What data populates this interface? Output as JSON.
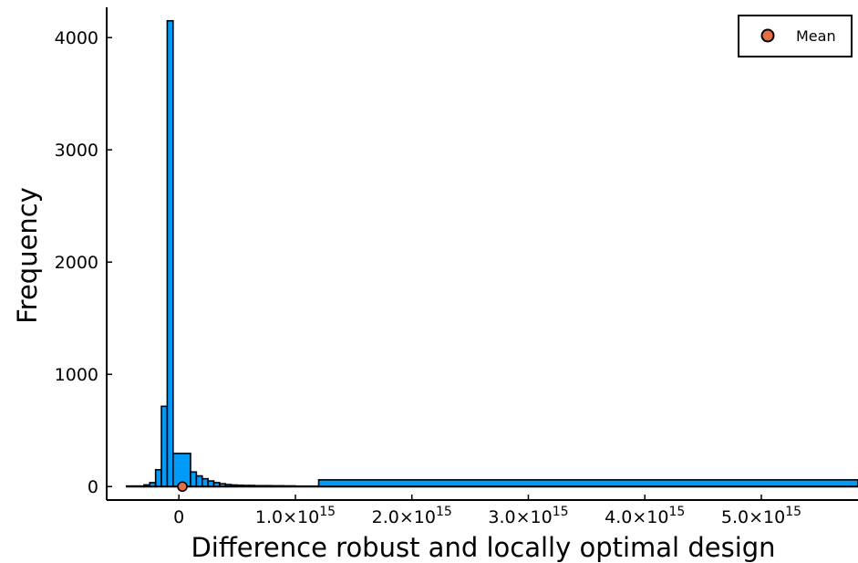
{
  "chart_data": {
    "type": "bar",
    "title": "",
    "xlabel": "Difference robust and locally optimal design",
    "ylabel": "Frequency",
    "xlim": [
      -620000000000000.0,
      5830000000000000.0
    ],
    "ylim": [
      -120,
      4270
    ],
    "grid": false,
    "legend_position": "top-right",
    "x_ticks": [
      {
        "value": 0,
        "mantissa": "0",
        "exponent": ""
      },
      {
        "value": 1000000000000000.0,
        "mantissa": "1.0×10",
        "exponent": "15"
      },
      {
        "value": 2000000000000000.0,
        "mantissa": "2.0×10",
        "exponent": "15"
      },
      {
        "value": 3000000000000000.0,
        "mantissa": "3.0×10",
        "exponent": "15"
      },
      {
        "value": 4000000000000000.0,
        "mantissa": "4.0×10",
        "exponent": "15"
      },
      {
        "value": 5000000000000000.0,
        "mantissa": "5.0×10",
        "exponent": "15"
      }
    ],
    "y_ticks": [
      0,
      1000,
      2000,
      3000,
      4000
    ],
    "series": [
      {
        "name": "",
        "kind": "histogram",
        "color": "#009af9",
        "bins": [
          {
            "x0": -450000000000000.0,
            "x1": -300000000000000.0,
            "count": 5
          },
          {
            "x0": -300000000000000.0,
            "x1": -250000000000000.0,
            "count": 15
          },
          {
            "x0": -250000000000000.0,
            "x1": -200000000000000.0,
            "count": 35
          },
          {
            "x0": -200000000000000.0,
            "x1": -150000000000000.0,
            "count": 150
          },
          {
            "x0": -150000000000000.0,
            "x1": -100000000000000.0,
            "count": 715
          },
          {
            "x0": -100000000000000.0,
            "x1": -50000000000000.0,
            "count": 4150
          },
          {
            "x0": -50000000000000.0,
            "x1": 100000000000000.0,
            "count": 295
          },
          {
            "x0": 100000000000000.0,
            "x1": 150000000000000.0,
            "count": 130
          },
          {
            "x0": 150000000000000.0,
            "x1": 200000000000000.0,
            "count": 95
          },
          {
            "x0": 200000000000000.0,
            "x1": 250000000000000.0,
            "count": 70
          },
          {
            "x0": 250000000000000.0,
            "x1": 300000000000000.0,
            "count": 50
          },
          {
            "x0": 300000000000000.0,
            "x1": 350000000000000.0,
            "count": 35
          },
          {
            "x0": 350000000000000.0,
            "x1": 400000000000000.0,
            "count": 25
          },
          {
            "x0": 400000000000000.0,
            "x1": 450000000000000.0,
            "count": 18
          },
          {
            "x0": 450000000000000.0,
            "x1": 500000000000000.0,
            "count": 14
          },
          {
            "x0": 500000000000000.0,
            "x1": 550000000000000.0,
            "count": 12
          },
          {
            "x0": 550000000000000.0,
            "x1": 600000000000000.0,
            "count": 10
          },
          {
            "x0": 600000000000000.0,
            "x1": 650000000000000.0,
            "count": 10
          },
          {
            "x0": 650000000000000.0,
            "x1": 700000000000000.0,
            "count": 8
          },
          {
            "x0": 700000000000000.0,
            "x1": 750000000000000.0,
            "count": 8
          },
          {
            "x0": 750000000000000.0,
            "x1": 800000000000000.0,
            "count": 8
          },
          {
            "x0": 800000000000000.0,
            "x1": 900000000000000.0,
            "count": 7
          },
          {
            "x0": 900000000000000.0,
            "x1": 1000000000000000.0,
            "count": 6
          },
          {
            "x0": 1000000000000000.0,
            "x1": 1200000000000000.0,
            "count": 4
          },
          {
            "x0": 1200000000000000.0,
            "x1": 5830000000000000.0,
            "count": 60
          }
        ]
      },
      {
        "name": "Mean",
        "kind": "point",
        "color": "#e26f46",
        "x": 30000000000000.0,
        "y": 0
      }
    ]
  }
}
